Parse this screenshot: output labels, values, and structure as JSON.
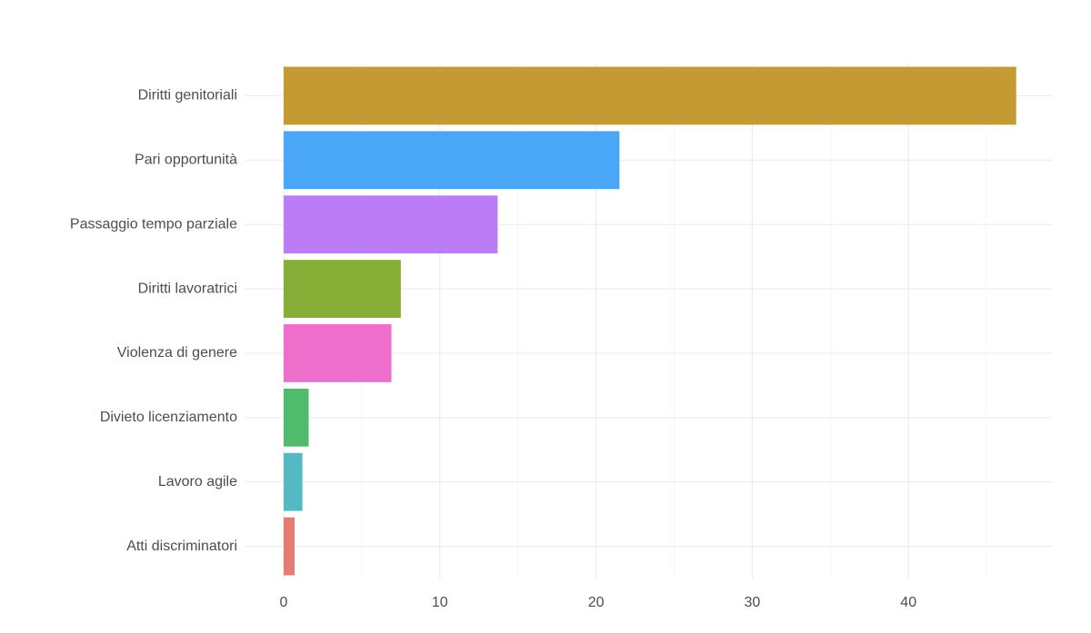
{
  "chart_data": {
    "type": "bar",
    "orientation": "horizontal",
    "title": "",
    "xlabel": "",
    "ylabel": "",
    "categories": [
      "Diritti genitoriali",
      "Pari opportunità",
      "Passaggio tempo parziale",
      "Diritti lavoratrici",
      "Violenza di genere",
      "Divieto licenziamento",
      "Lavoro agile",
      "Atti discriminatori"
    ],
    "values": [
      46.9,
      21.5,
      13.7,
      7.5,
      6.9,
      1.6,
      1.2,
      0.7
    ],
    "colors": [
      "#c49a32",
      "#4aa6f6",
      "#bb7cf6",
      "#86ad36",
      "#ee6ecb",
      "#50bb6c",
      "#54b9c3",
      "#e57b72"
    ],
    "xlim": [
      0,
      48.5
    ],
    "x_ticks": [
      0,
      10,
      20,
      30,
      40
    ],
    "grid": true,
    "legend": "none",
    "colors_ui": {
      "grid_major": "#ebebeb",
      "grid_minor": "#f4f4f4",
      "tick_label": "#4d4d4d"
    }
  }
}
